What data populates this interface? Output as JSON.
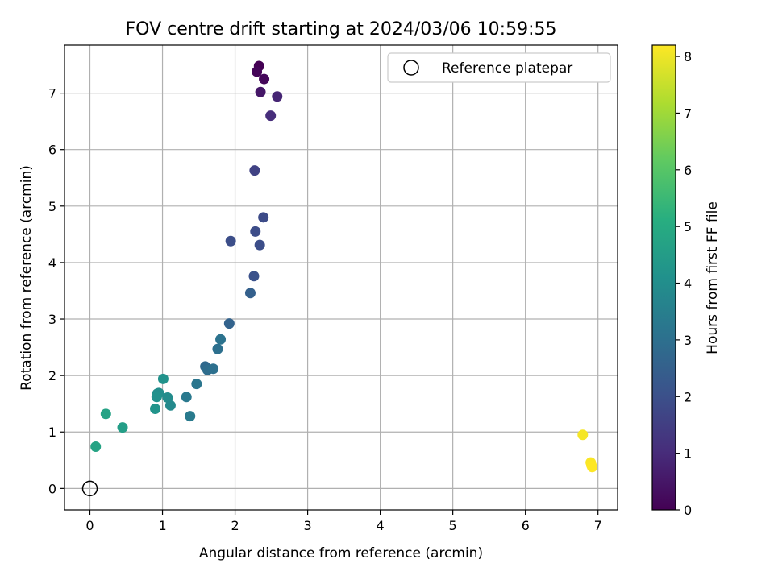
{
  "chart_data": {
    "type": "scatter",
    "title": "FOV centre drift starting at 2024/03/06 10:59:55",
    "xlabel": "Angular distance from reference (arcmin)",
    "ylabel": "Rotation from reference (arcmin)",
    "xlim": [
      -0.35,
      7.27
    ],
    "ylim": [
      -0.38,
      7.85
    ],
    "xticks": [
      0,
      1,
      2,
      3,
      4,
      5,
      6,
      7
    ],
    "yticks": [
      0,
      1,
      2,
      3,
      4,
      5,
      6,
      7
    ],
    "grid": true,
    "legend": {
      "position": "upper right",
      "entries": [
        "Reference platepar"
      ]
    },
    "reference_point": {
      "label": "Reference platepar",
      "x": 0,
      "y": 0,
      "marker": "open-circle"
    },
    "colorbar": {
      "label": "Hours from first FF file",
      "colormap": "viridis",
      "range": [
        0,
        8.2
      ],
      "ticks": [
        0,
        1,
        2,
        3,
        4,
        5,
        6,
        7,
        8
      ]
    },
    "series": [
      {
        "points": [
          {
            "x": 2.33,
            "y": 7.48,
            "c": 0.0
          },
          {
            "x": 2.3,
            "y": 7.38,
            "c": 0.1
          },
          {
            "x": 2.4,
            "y": 7.25,
            "c": 0.15
          },
          {
            "x": 2.35,
            "y": 7.02,
            "c": 0.5
          },
          {
            "x": 2.58,
            "y": 6.94,
            "c": 0.85
          },
          {
            "x": 2.49,
            "y": 6.6,
            "c": 1.05
          },
          {
            "x": 2.27,
            "y": 5.63,
            "c": 1.6
          },
          {
            "x": 2.39,
            "y": 4.8,
            "c": 1.85
          },
          {
            "x": 2.28,
            "y": 4.55,
            "c": 1.9
          },
          {
            "x": 1.94,
            "y": 4.38,
            "c": 1.95
          },
          {
            "x": 2.34,
            "y": 4.31,
            "c": 1.95
          },
          {
            "x": 2.26,
            "y": 3.76,
            "c": 2.05
          },
          {
            "x": 2.21,
            "y": 3.46,
            "c": 2.5
          },
          {
            "x": 1.92,
            "y": 2.92,
            "c": 2.6
          },
          {
            "x": 1.8,
            "y": 2.64,
            "c": 3.1
          },
          {
            "x": 1.76,
            "y": 2.47,
            "c": 3.0
          },
          {
            "x": 1.59,
            "y": 2.16,
            "c": 2.8
          },
          {
            "x": 1.62,
            "y": 2.1,
            "c": 2.9
          },
          {
            "x": 1.7,
            "y": 2.12,
            "c": 3.0
          },
          {
            "x": 1.47,
            "y": 1.85,
            "c": 3.2
          },
          {
            "x": 1.33,
            "y": 1.62,
            "c": 3.3
          },
          {
            "x": 1.38,
            "y": 1.28,
            "c": 3.35
          },
          {
            "x": 1.01,
            "y": 1.94,
            "c": 4.15
          },
          {
            "x": 0.93,
            "y": 1.68,
            "c": 4.05
          },
          {
            "x": 0.95,
            "y": 1.69,
            "c": 4.0
          },
          {
            "x": 0.92,
            "y": 1.62,
            "c": 4.1
          },
          {
            "x": 1.07,
            "y": 1.61,
            "c": 3.95
          },
          {
            "x": 1.11,
            "y": 1.47,
            "c": 3.85
          },
          {
            "x": 0.9,
            "y": 1.41,
            "c": 4.2
          },
          {
            "x": 0.22,
            "y": 1.32,
            "c": 4.7
          },
          {
            "x": 0.45,
            "y": 1.08,
            "c": 4.55
          },
          {
            "x": 0.08,
            "y": 0.74,
            "c": 4.75
          },
          {
            "x": 6.79,
            "y": 0.95,
            "c": 8.1
          },
          {
            "x": 6.9,
            "y": 0.46,
            "c": 8.15
          },
          {
            "x": 6.91,
            "y": 0.41,
            "c": 8.18
          },
          {
            "x": 6.92,
            "y": 0.38,
            "c": 8.2
          }
        ]
      }
    ]
  }
}
